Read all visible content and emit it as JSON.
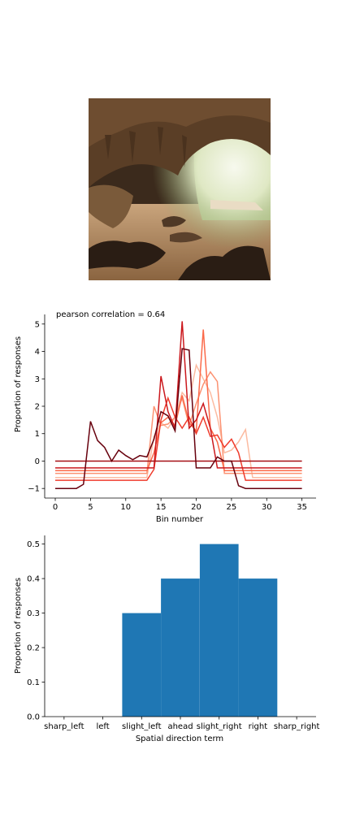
{
  "image": {
    "icon": "cave-photo",
    "description_visible": false
  },
  "chart_data": [
    {
      "type": "line",
      "title": "",
      "annotation": "pearson correlation = 0.64",
      "xlabel": "Bin number",
      "ylabel": "Proportion of responses",
      "xlim": [
        -1.5,
        37
      ],
      "ylim": [
        -1.35,
        5.35
      ],
      "xticks": [
        0,
        5,
        10,
        15,
        20,
        25,
        30,
        35
      ],
      "yticks": [
        -1,
        0,
        1,
        2,
        3,
        4,
        5
      ],
      "series": [
        {
          "color": "#fcbba1",
          "points": [
            [
              0,
              -0.6
            ],
            [
              13,
              -0.6
            ],
            [
              14,
              0.9
            ],
            [
              15,
              1.4
            ],
            [
              16,
              1.2
            ],
            [
              17,
              1.6
            ],
            [
              18,
              2.5
            ],
            [
              19,
              2.2
            ],
            [
              20,
              3.5
            ],
            [
              21,
              3.0
            ],
            [
              22,
              2.5
            ],
            [
              23,
              1.6
            ],
            [
              24,
              0.3
            ],
            [
              25,
              0.4
            ],
            [
              26,
              0.7
            ],
            [
              27,
              1.15
            ],
            [
              28,
              -0.6
            ],
            [
              35,
              -0.6
            ]
          ]
        },
        {
          "color": "#fc9272",
          "points": [
            [
              0,
              -0.45
            ],
            [
              13,
              -0.45
            ],
            [
              14,
              2.0
            ],
            [
              15,
              1.3
            ],
            [
              16,
              1.35
            ],
            [
              17,
              1.6
            ],
            [
              18,
              2.3
            ],
            [
              19,
              1.3
            ],
            [
              20,
              2.1
            ],
            [
              21,
              2.8
            ],
            [
              22,
              3.25
            ],
            [
              23,
              2.9
            ],
            [
              24,
              -0.45
            ],
            [
              35,
              -0.45
            ]
          ]
        },
        {
          "color": "#fb6a4a",
          "points": [
            [
              0,
              -0.35
            ],
            [
              13,
              -0.35
            ],
            [
              14,
              0.3
            ],
            [
              15,
              1.4
            ],
            [
              16,
              1.6
            ],
            [
              17,
              1.3
            ],
            [
              18,
              2.4
            ],
            [
              19,
              1.4
            ],
            [
              20,
              1.1
            ],
            [
              21,
              4.8
            ],
            [
              22,
              1.2
            ],
            [
              23,
              0.7
            ],
            [
              24,
              -0.35
            ],
            [
              35,
              -0.35
            ]
          ]
        },
        {
          "color": "#ef3b2c",
          "points": [
            [
              0,
              -0.7
            ],
            [
              13,
              -0.7
            ],
            [
              14,
              -0.3
            ],
            [
              15,
              1.5
            ],
            [
              16,
              2.3
            ],
            [
              17,
              1.6
            ],
            [
              18,
              1.2
            ],
            [
              19,
              1.6
            ],
            [
              20,
              1.0
            ],
            [
              21,
              1.6
            ],
            [
              22,
              0.9
            ],
            [
              23,
              0.95
            ],
            [
              24,
              0.5
            ],
            [
              25,
              0.8
            ],
            [
              26,
              0.3
            ],
            [
              27,
              -0.7
            ],
            [
              35,
              -0.7
            ]
          ]
        },
        {
          "color": "#cb181d",
          "points": [
            [
              0,
              -0.25
            ],
            [
              14,
              -0.25
            ],
            [
              15,
              3.1
            ],
            [
              16,
              1.8
            ],
            [
              17,
              1.2
            ],
            [
              18,
              5.1
            ],
            [
              19,
              1.2
            ],
            [
              20,
              1.5
            ],
            [
              21,
              2.1
            ],
            [
              22,
              1.2
            ],
            [
              23,
              -0.25
            ],
            [
              35,
              -0.25
            ]
          ]
        },
        {
          "color": "#a50f15",
          "points": [
            [
              0,
              0.0
            ],
            [
              35,
              0.0
            ]
          ]
        },
        {
          "color": "#67000d",
          "points": [
            [
              0,
              -1.0
            ],
            [
              3,
              -1.0
            ],
            [
              4,
              -0.85
            ],
            [
              5,
              1.45
            ],
            [
              6,
              0.75
            ],
            [
              7,
              0.5
            ],
            [
              8,
              0.0
            ],
            [
              9,
              0.4
            ],
            [
              10,
              0.2
            ],
            [
              11,
              0.05
            ],
            [
              12,
              0.2
            ],
            [
              13,
              0.15
            ],
            [
              14,
              0.8
            ],
            [
              15,
              1.8
            ],
            [
              16,
              1.65
            ],
            [
              17,
              1.1
            ],
            [
              18,
              4.1
            ],
            [
              19,
              4.05
            ],
            [
              20,
              -0.25
            ],
            [
              21,
              -0.25
            ],
            [
              22,
              -0.25
            ],
            [
              23,
              0.15
            ],
            [
              24,
              0.0
            ],
            [
              25,
              0.0
            ],
            [
              26,
              -0.9
            ],
            [
              27,
              -1.0
            ],
            [
              35,
              -1.0
            ]
          ]
        }
      ]
    },
    {
      "type": "bar",
      "xlabel": "Spatial direction term",
      "ylabel": "Proportion of responses",
      "ylim": [
        0,
        0.525
      ],
      "yticks": [
        "0.0",
        "0.1",
        "0.2",
        "0.3",
        "0.4",
        "0.5"
      ],
      "categories": [
        "sharp_left",
        "left",
        "slight_left",
        "ahead",
        "slight_right",
        "right",
        "sharp_right"
      ],
      "values": [
        0,
        0,
        0.3,
        0.4,
        0.5,
        0.4,
        0
      ],
      "bar_color": "#1f77b4"
    }
  ]
}
